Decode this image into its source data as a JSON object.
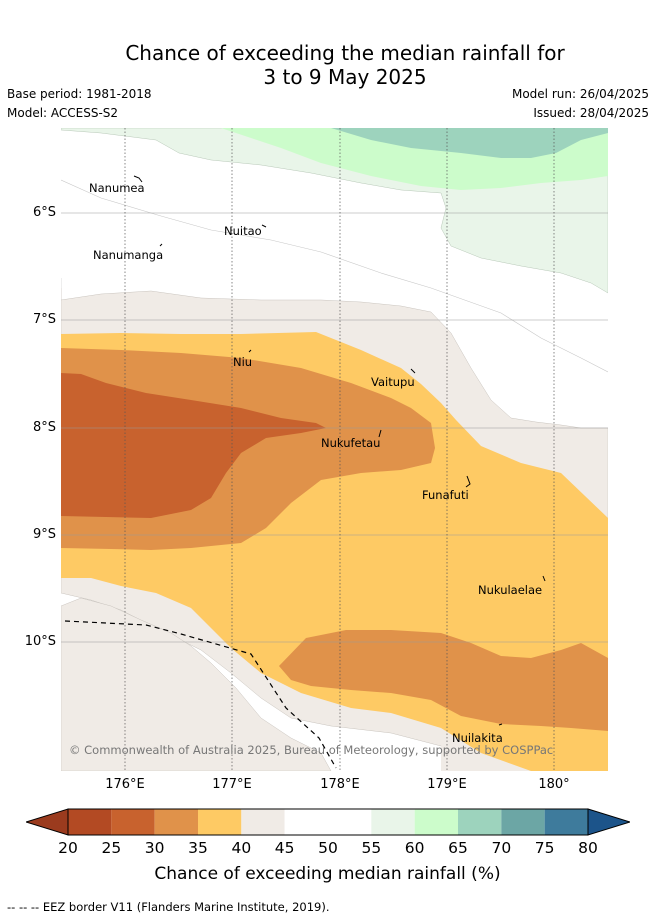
{
  "header": {
    "title_line1": "Chance of exceeding the median rainfall for",
    "title_line2": "3 to 9 May 2025",
    "base_period": "Base period: 1981-2018",
    "model": "Model: ACCESS-S2",
    "model_run": "Model run: 26/04/2025",
    "issued": "Issued: 28/04/2025"
  },
  "map": {
    "lat_labels": [
      "6°S",
      "7°S",
      "8°S",
      "9°S",
      "10°S"
    ],
    "lon_labels": [
      "176°E",
      "177°E",
      "178°E",
      "179°E",
      "180°"
    ],
    "places": [
      "Nanumea",
      "Nuitao",
      "Nanumanga",
      "Niu",
      "Vaitupu",
      "Nukufetau",
      "Funafuti",
      "Nukulaelae",
      "Nuilakita"
    ],
    "credit": "© Commonwealth of Australia 2025, Bureau of Meteorology, supported by COSPPac"
  },
  "colorbar": {
    "ticks": [
      "20",
      "25",
      "30",
      "35",
      "40",
      "45",
      "50",
      "55",
      "60",
      "65",
      "70",
      "75",
      "80"
    ],
    "colors": [
      "#b34a23",
      "#c8622e",
      "#e0924a",
      "#feca64",
      "#f0ebe6",
      "#ffffff",
      "#ffffff",
      "#e9f5e9",
      "#ccfccb",
      "#9dd3bd",
      "#6ca6a5",
      "#3e7b9c"
    ],
    "under_color": "#9b3b1e",
    "over_color": "#1c548a",
    "label": "Chance of exceeding median rainfall (%)"
  },
  "footer": {
    "eez_note": "--  --  -- EEZ border V11 (Flanders Marine Institute, 2019)."
  }
}
